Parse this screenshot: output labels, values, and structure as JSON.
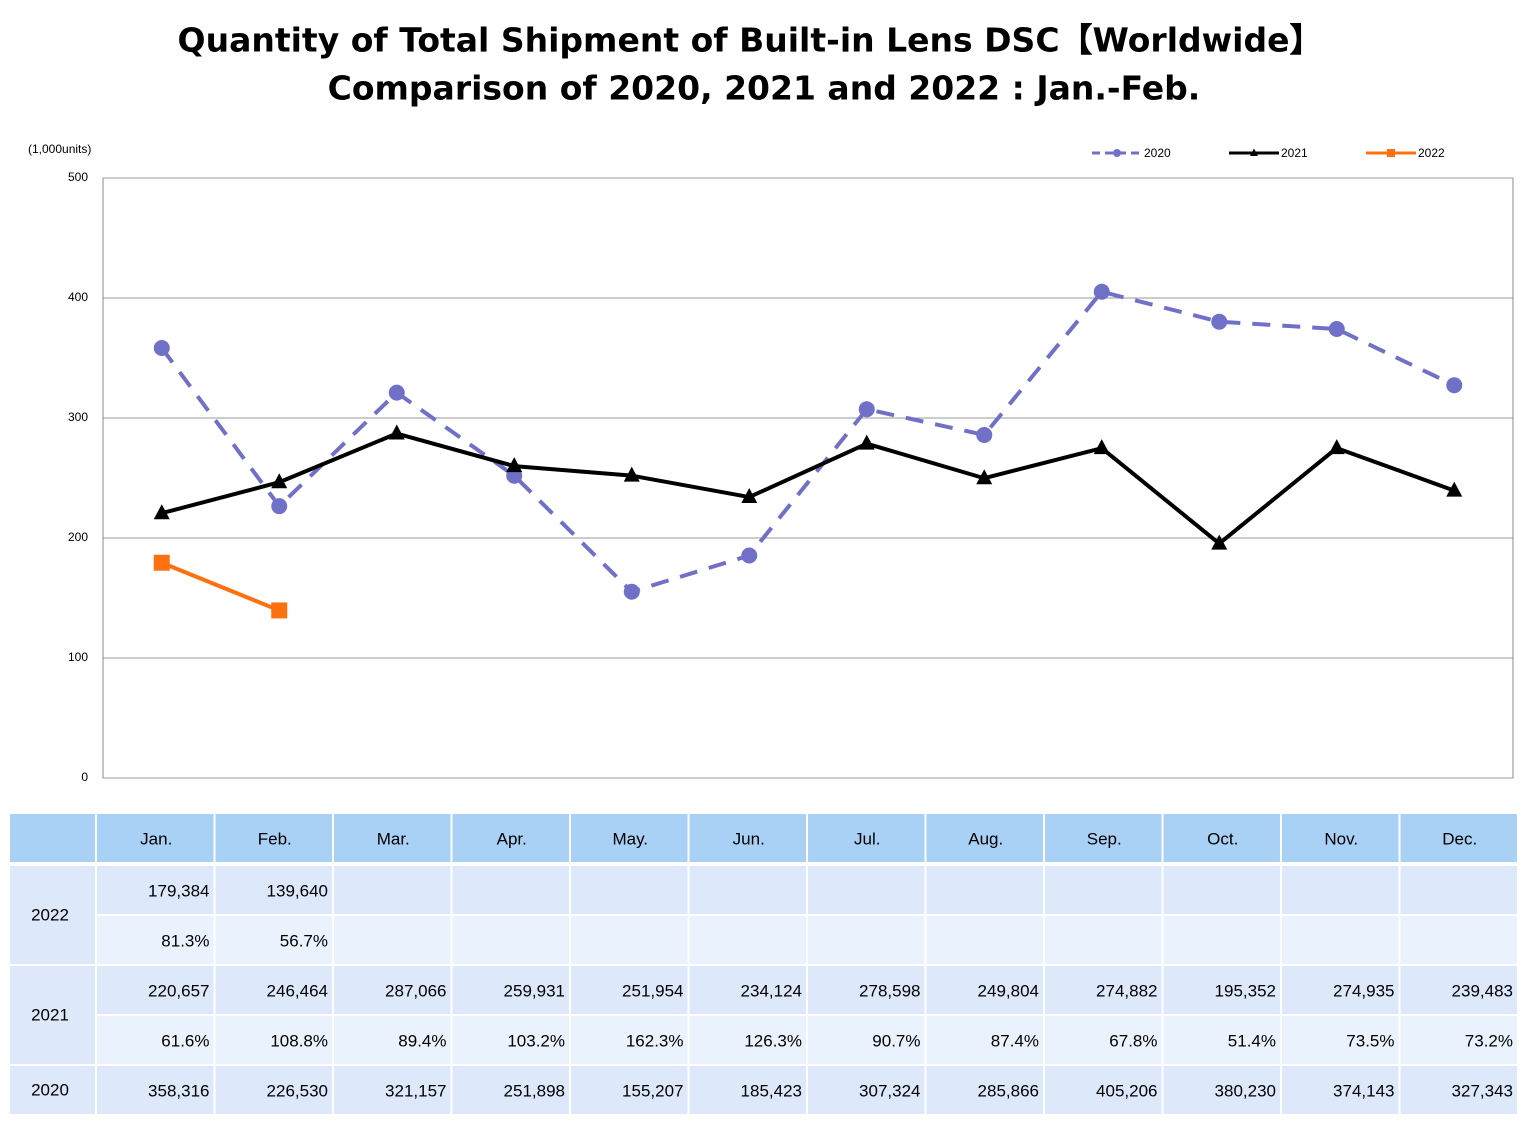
{
  "chart_data": {
    "type": "line",
    "title": "Quantity of Total Shipment of Built-in Lens DSC【Worldwide】",
    "subtitle": "Comparison of 2020, 2021 and 2022 : Jan.-Feb.",
    "y_label": "(1,000units)",
    "categories": [
      "Jan.",
      "Feb.",
      "Mar.",
      "Apr.",
      "May.",
      "Jun.",
      "Jul.",
      "Aug.",
      "Sep.",
      "Oct.",
      "Nov.",
      "Dec."
    ],
    "series": [
      {
        "name": "2020",
        "color": "#7070c8",
        "dashed": true,
        "marker": "circle",
        "values": [
          358.316,
          226.53,
          321.157,
          251.898,
          155.207,
          185.423,
          307.324,
          285.866,
          405.206,
          380.23,
          374.143,
          327.343
        ]
      },
      {
        "name": "2021",
        "color": "#000000",
        "dashed": false,
        "marker": "triangle",
        "values": [
          220.657,
          246.464,
          287.066,
          259.931,
          251.954,
          234.124,
          278.598,
          249.804,
          274.882,
          195.352,
          274.935,
          239.483
        ]
      },
      {
        "name": "2022",
        "color": "#ff7010",
        "dashed": false,
        "marker": "square",
        "values": [
          179.384,
          139.64,
          null,
          null,
          null,
          null,
          null,
          null,
          null,
          null,
          null,
          null
        ]
      }
    ],
    "ylim": [
      0,
      500
    ],
    "yticks": [
      0,
      100,
      200,
      300,
      400,
      500
    ],
    "grid": true,
    "legend": "top-right"
  },
  "table": {
    "groups": [
      {
        "label": "2022",
        "rows": [
          [
            "179,384",
            "139,640"
          ],
          [
            "81.3%",
            "56.7%"
          ]
        ]
      },
      {
        "label": "2021",
        "rows": [
          [
            "220,657",
            "246,464",
            "287,066",
            "259,931",
            "251,954",
            "234,124",
            "278,598",
            "249,804",
            "274,882",
            "195,352",
            "274,935",
            "239,483"
          ],
          [
            "61.6%",
            "108.8%",
            "89.4%",
            "103.2%",
            "162.3%",
            "126.3%",
            "90.7%",
            "87.4%",
            "67.8%",
            "51.4%",
            "73.5%",
            "73.2%"
          ]
        ]
      },
      {
        "label": "2020",
        "rows": [
          [
            "358,316",
            "226,530",
            "321,157",
            "251,898",
            "155,207",
            "185,423",
            "307,324",
            "285,866",
            "405,206",
            "380,230",
            "374,143",
            "327,343"
          ]
        ]
      }
    ]
  }
}
